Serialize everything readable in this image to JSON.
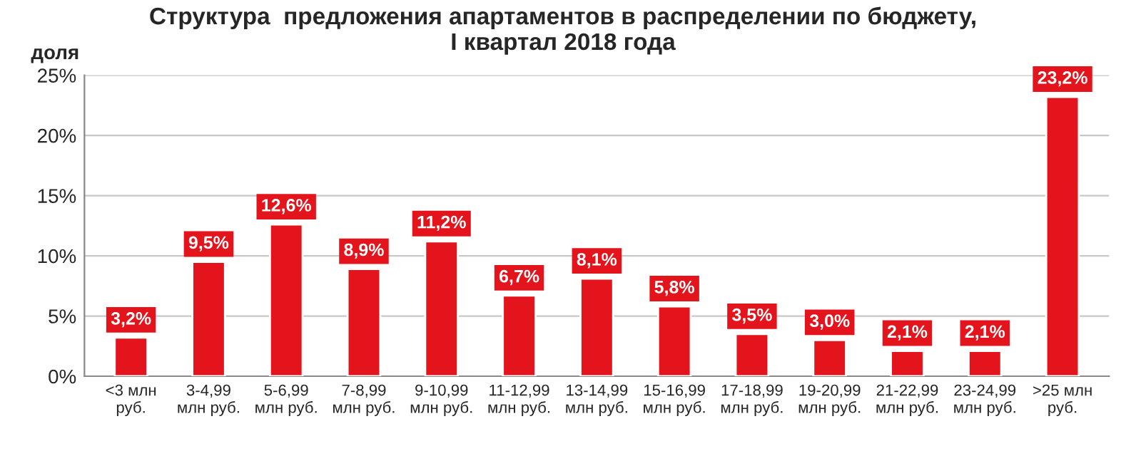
{
  "chart_data": {
    "type": "bar",
    "title": "Структура  предложения апартаментов в распределении по бюджету,\nI квартал 2018 года",
    "ylabel": "доля",
    "categories": [
      "<3 млн\nруб.",
      "3-4,99\nмлн руб.",
      "5-6,99\nмлн руб.",
      "7-8,99\nмлн руб.",
      "9-10,99\nмлн руб.",
      "11-12,99\nмлн руб.",
      "13-14,99\nмлн руб.",
      "15-16,99\nмлн руб.",
      "17-18,99\nмлн руб.",
      "19-20,99\nмлн руб.",
      "21-22,99\nмлн руб.",
      "23-24,99\nмлн руб.",
      ">25 млн\nруб."
    ],
    "values": [
      3.2,
      9.5,
      12.6,
      8.9,
      11.2,
      6.7,
      8.1,
      5.8,
      3.5,
      3.0,
      2.1,
      2.1,
      23.2
    ],
    "value_labels": [
      "3,2%",
      "9,5%",
      "12,6%",
      "8,9%",
      "11,2%",
      "6,7%",
      "8,1%",
      "5,8%",
      "3,5%",
      "3,0%",
      "2,1%",
      "2,1%",
      "23,2%"
    ],
    "color": "#e3141b",
    "ylim": [
      0,
      25
    ],
    "yticks": [
      {
        "value": 0,
        "label": "0%"
      },
      {
        "value": 5,
        "label": "5%"
      },
      {
        "value": 10,
        "label": "10%"
      },
      {
        "value": 15,
        "label": "15%"
      },
      {
        "value": 20,
        "label": "20%"
      },
      {
        "value": 25,
        "label": "25%"
      }
    ],
    "grid": "y"
  }
}
